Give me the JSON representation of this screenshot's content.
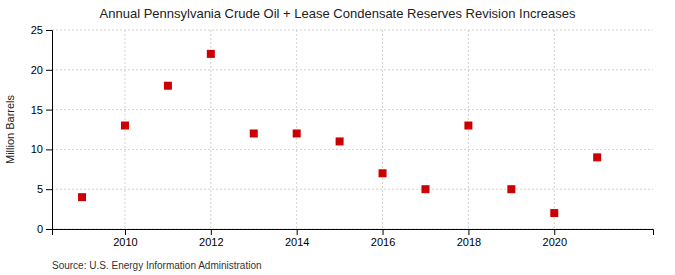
{
  "chart_data": {
    "type": "scatter",
    "title": "Annual Pennsylvania Crude Oil + Lease Condensate Reserves Revision Increases",
    "ylabel": "Million Barrels",
    "source": "Source: U.S. Energy Information Administration",
    "x": [
      2009,
      2010,
      2011,
      2012,
      2013,
      2014,
      2015,
      2016,
      2017,
      2018,
      2019,
      2020,
      2021
    ],
    "values": [
      4.0,
      13.0,
      18.0,
      22.0,
      12.0,
      12.0,
      11.0,
      7.0,
      5.0,
      13.0,
      5.0,
      2.0,
      9.0
    ],
    "color": "#cc0000",
    "marker": "square",
    "xlim": [
      2008.3,
      2022.3
    ],
    "ylim": [
      0,
      25
    ],
    "xticks": [
      2010,
      2012,
      2014,
      2016,
      2018,
      2020
    ],
    "yticks": [
      0,
      5,
      10,
      15,
      20,
      25
    ],
    "grid": true
  }
}
